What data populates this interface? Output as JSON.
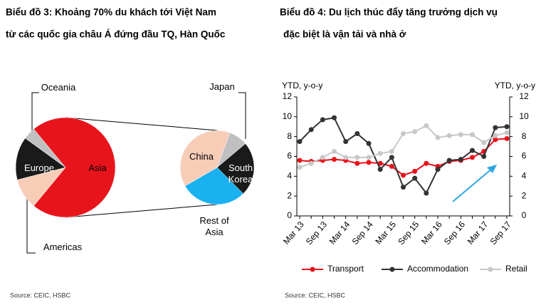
{
  "chart_data": [
    {
      "type": "pie-of-pie",
      "title": [
        "Biểu đồ 3: Khoảng 70% du khách tới Việt Nam",
        "từ các quốc gia châu Á đứng đầu TQ, Hàn Quốc"
      ],
      "categories": [
        "Asia",
        "Americas",
        "Europe",
        "Oceania"
      ],
      "values": [
        72,
        10,
        14,
        4
      ],
      "colors": [
        "#e8141c",
        "#f8cdb8",
        "#1a1a1a",
        "#c0c0c0"
      ],
      "breakdown": {
        "categories": [
          "Japan",
          "South Korea",
          "Rest of Asia",
          "China"
        ],
        "values": [
          6,
          17,
          21,
          28
        ],
        "colors": [
          "#c0c0c0",
          "#1a1a1a",
          "#19b1f0",
          "#f8cdb8"
        ]
      },
      "source": "Source: CEIC, HSBC"
    },
    {
      "type": "line",
      "title": [
        "Biểu đồ 4: Du lịch thúc đẩy tăng trưởng dịch vụ",
        "đặc biệt là vận tải và nhà ở"
      ],
      "y_label": "YTD, y-o-y",
      "y2_label": "YTD, y-o-y",
      "categories": [
        "Mar 13",
        null,
        "Sep 13",
        null,
        "Mar 14",
        null,
        "Sep 14",
        null,
        "Mar 15",
        null,
        "Sep 15",
        null,
        "Mar 16",
        null,
        "Sep 16",
        null,
        "Mar 17",
        null,
        "Sep 17"
      ],
      "series": [
        {
          "name": "Transport",
          "color": "#e8121b",
          "values": [
            5.6,
            5.5,
            5.6,
            5.7,
            5.6,
            5.3,
            5.4,
            5.3,
            5.0,
            4.1,
            4.5,
            5.3,
            5.0,
            5.5,
            5.6,
            5.9,
            6.5,
            7.7,
            7.8
          ]
        },
        {
          "name": "Accommodation",
          "color": "#333333",
          "values": [
            7.5,
            8.7,
            9.7,
            9.9,
            7.5,
            8.3,
            7.3,
            4.7,
            5.9,
            2.9,
            3.8,
            2.3,
            4.7,
            5.6,
            5.7,
            6.6,
            6.0,
            8.9,
            9.0
          ]
        },
        {
          "name": "Retail",
          "color": "#c8c8c8",
          "values": [
            4.9,
            5.3,
            5.9,
            6.5,
            5.9,
            5.9,
            5.9,
            6.3,
            6.5,
            8.3,
            8.5,
            9.1,
            7.9,
            8.1,
            8.2,
            8.2,
            7.4,
            8.1,
            8.4
          ]
        }
      ],
      "ylim": [
        0,
        12
      ],
      "yticks": [
        0,
        2,
        4,
        6,
        8,
        10,
        12
      ],
      "y2lim": [
        0,
        12
      ],
      "y2ticks": [
        0,
        2,
        4,
        6,
        8,
        10,
        12
      ],
      "source": "Source: CEIC, HSBC"
    }
  ]
}
